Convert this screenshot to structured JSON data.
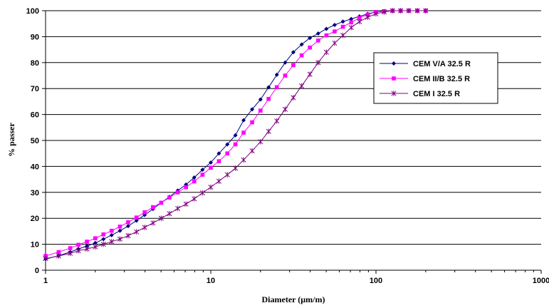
{
  "chart_data": {
    "type": "line",
    "xlabel": "Diameter (µm/m)",
    "ylabel": "% passer",
    "xscale": "log",
    "xlim": [
      1,
      1000
    ],
    "ylim": [
      0,
      100
    ],
    "xticks": [
      "1",
      "10",
      "100",
      "1000"
    ],
    "yticks": [
      "0",
      "10",
      "20",
      "30",
      "40",
      "50",
      "60",
      "70",
      "80",
      "90",
      "100"
    ],
    "grid": "horizontal",
    "legend_position": "right",
    "series": [
      {
        "name": "CEM V/A 32.5 R",
        "color": "#00007f",
        "marker": "diamond",
        "x": [
          1,
          1.2,
          1.41,
          1.58,
          1.78,
          2,
          2.24,
          2.51,
          2.82,
          3.16,
          3.55,
          3.98,
          4.47,
          5.01,
          5.62,
          6.31,
          7.08,
          7.94,
          8.91,
          10,
          11.2,
          12.6,
          14.1,
          15.8,
          17.8,
          20,
          22.4,
          25.1,
          28.2,
          31.6,
          35.5,
          39.8,
          44.7,
          50.1,
          56.2,
          63.1,
          70.8,
          79.4,
          89.1,
          100,
          112,
          126,
          141,
          158,
          178,
          200
        ],
        "y": [
          4.3,
          5.6,
          7.0,
          8.2,
          9.3,
          10.5,
          12.0,
          13.5,
          15.2,
          17.0,
          19.1,
          21.3,
          23.6,
          26.0,
          28.3,
          30.7,
          33.0,
          35.7,
          38.7,
          41.5,
          45.0,
          48.5,
          52.0,
          57.8,
          62.0,
          65.8,
          70.5,
          75.3,
          80.0,
          84.0,
          87.0,
          89.5,
          91.2,
          93.0,
          94.5,
          95.8,
          96.8,
          97.8,
          98.8,
          99.5,
          99.8,
          100,
          100,
          100,
          100,
          100
        ]
      },
      {
        "name": "CEM II/B 32.5 R",
        "color": "#ff00ff",
        "marker": "square",
        "x": [
          1,
          1.2,
          1.41,
          1.58,
          1.78,
          2,
          2.24,
          2.51,
          2.82,
          3.16,
          3.55,
          3.98,
          4.47,
          5.01,
          5.62,
          6.31,
          7.08,
          7.94,
          8.91,
          10,
          11.2,
          12.6,
          14.1,
          15.8,
          17.8,
          20,
          22.4,
          25.1,
          28.2,
          31.6,
          35.5,
          39.8,
          44.7,
          50.1,
          56.2,
          63.1,
          70.8,
          79.4,
          89.1,
          100,
          112,
          126,
          141,
          158,
          178,
          200
        ],
        "y": [
          5.5,
          7.0,
          8.5,
          9.8,
          11.0,
          12.3,
          13.8,
          15.2,
          16.8,
          18.5,
          20.3,
          22.3,
          24.3,
          26.0,
          28.0,
          30.0,
          32.0,
          34.2,
          36.8,
          39.5,
          42.0,
          45.0,
          48.5,
          53.0,
          57.0,
          61.5,
          66.0,
          70.5,
          75.0,
          79.0,
          82.8,
          85.8,
          88.5,
          90.5,
          92.0,
          93.8,
          95.5,
          97.2,
          98.5,
          99.5,
          99.8,
          100,
          100,
          100,
          100,
          100
        ]
      },
      {
        "name": "CEM I 32.5 R",
        "color": "#7f007f",
        "marker": "star",
        "x": [
          1,
          1.2,
          1.41,
          1.58,
          1.78,
          2,
          2.24,
          2.51,
          2.82,
          3.16,
          3.55,
          3.98,
          4.47,
          5.01,
          5.62,
          6.31,
          7.08,
          7.94,
          8.91,
          10,
          11.2,
          12.6,
          14.1,
          15.8,
          17.8,
          20,
          22.4,
          25.1,
          28.2,
          31.6,
          35.5,
          39.8,
          44.7,
          50.1,
          56.2,
          63.1,
          70.8,
          79.4,
          89.1,
          100,
          112,
          126,
          141,
          158,
          178,
          200
        ],
        "y": [
          4.5,
          5.5,
          6.5,
          7.5,
          8.2,
          9.0,
          10.0,
          11.0,
          12.0,
          13.3,
          14.8,
          16.5,
          18.2,
          20.0,
          21.8,
          23.8,
          25.5,
          27.5,
          29.8,
          32.0,
          34.3,
          36.8,
          39.3,
          42.5,
          46.0,
          49.5,
          53.5,
          57.5,
          62.0,
          66.5,
          71.0,
          75.5,
          80.0,
          84.0,
          87.5,
          90.5,
          93.5,
          95.8,
          97.5,
          98.8,
          99.5,
          100,
          100,
          100,
          100,
          100
        ]
      }
    ]
  }
}
